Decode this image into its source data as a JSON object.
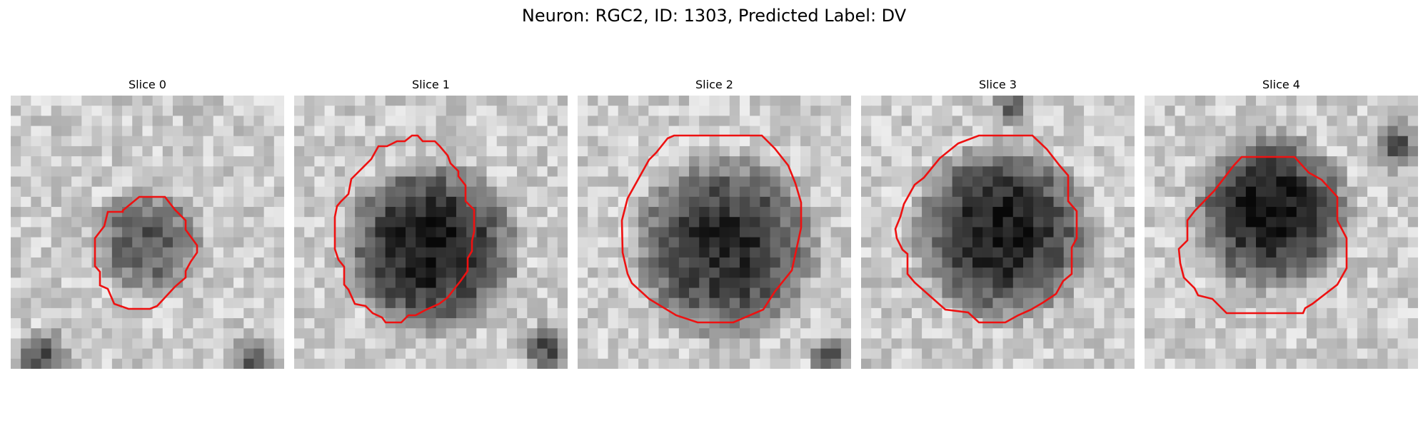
{
  "figure": {
    "title": "Neuron: RGC2, ID: 1303, Predicted Label: DV"
  },
  "panels": [
    {
      "title": "Slice 0"
    },
    {
      "title": "Slice 1"
    },
    {
      "title": "Slice 2"
    },
    {
      "title": "Slice 3"
    },
    {
      "title": "Slice 4"
    }
  ],
  "colors": {
    "contour": "#ee1111",
    "colormap": "grayscale"
  }
}
